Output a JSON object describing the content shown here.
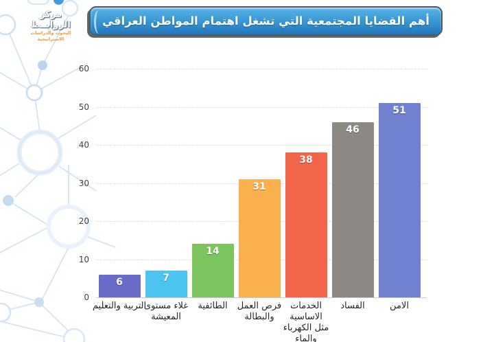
{
  "logo": {
    "title": "مركز الروابــط",
    "subtitle": "البحوث والدراسات الاستراتيجية"
  },
  "title": "أهم القضايا المجتمعية التي تشغل اهتمام المواطن العراقي",
  "chart_data": {
    "type": "bar",
    "title": "أهم القضايا المجتمعية التي تشغل اهتمام المواطن العراقي",
    "categories": [
      "التربية والتعليم",
      "غلاء مستوى المعيشة",
      "الطائفية",
      "فرص العمل والبطالة",
      "الخدمات الاساسية مثل الكهرباء والماء",
      "الفساد",
      "الامن"
    ],
    "categories_display": [
      [
        "التربية والتعليم"
      ],
      [
        "غلاء مستوى",
        "المعيشة"
      ],
      [
        "الطائفية"
      ],
      [
        "فرص العمل",
        "والبطالة"
      ],
      [
        "الخدمات",
        "الاساسية",
        "مثل الكهرباء",
        "والماء"
      ],
      [
        "الفساد"
      ],
      [
        "الامن"
      ]
    ],
    "values": [
      6,
      7,
      14,
      31,
      38,
      46,
      51
    ],
    "bar_colors": [
      "#6a6bc8",
      "#4dc3f0",
      "#7cc45e",
      "#f9b04d",
      "#f3664a",
      "#8d8a86",
      "#7280d0"
    ],
    "xlabel": "",
    "ylabel": "",
    "ylim": [
      0,
      60
    ],
    "yticks": [
      0,
      10,
      20,
      30,
      40,
      50,
      60
    ],
    "grid": true,
    "legend": false,
    "value_labels": "inside-top, white"
  },
  "colors": {
    "banner_top": "#55b2e5",
    "banner_bottom": "#2278bc",
    "banner_border": "#4d5a64",
    "grid": "#e0e0e0",
    "axis_text": "#3f3f3f",
    "pattern_blue": "#d3e3f3"
  }
}
